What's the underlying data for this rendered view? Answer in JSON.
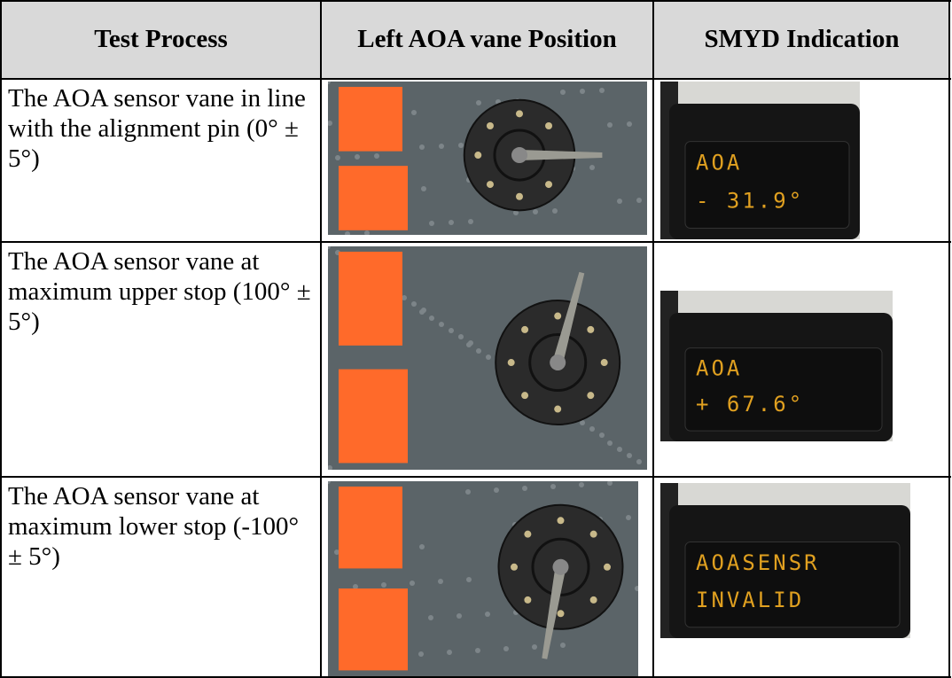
{
  "table": {
    "columns": [
      "Test Process",
      "Left AOA vane Position",
      "SMYD Indication"
    ],
    "rows": [
      {
        "test_process": "The AOA sensor vane in line with the alignment pin (0° ± 5°)",
        "smyd_display": [
          "AOA",
          "-    31.9°"
        ]
      },
      {
        "test_process": "The AOA sensor vane at maximum upper stop (100° ± 5°)",
        "smyd_display": [
          "AOA",
          "+    67.6°"
        ]
      },
      {
        "test_process": "The AOA sensor vane at maximum lower stop (-100° ± 5°)",
        "smyd_display": [
          "AOASENSR",
          "INVALID"
        ]
      }
    ]
  }
}
